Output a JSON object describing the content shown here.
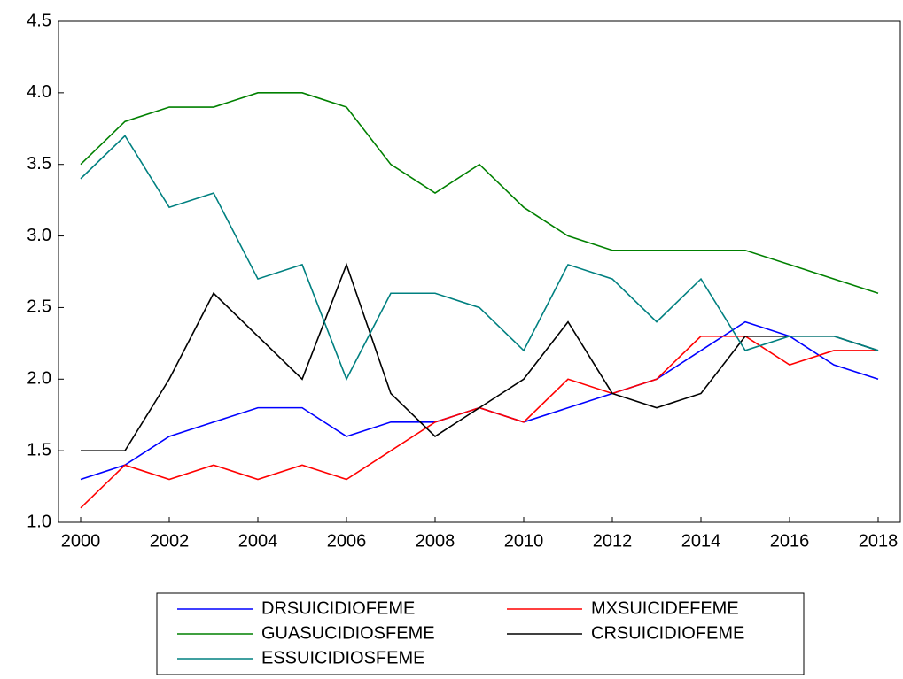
{
  "chart_data": {
    "type": "line",
    "x": [
      2000,
      2001,
      2002,
      2003,
      2004,
      2005,
      2006,
      2007,
      2008,
      2009,
      2010,
      2011,
      2012,
      2013,
      2014,
      2015,
      2016,
      2017,
      2018
    ],
    "series": [
      {
        "name": "DRSUICIDIOFEME",
        "color": "#0000ff",
        "values": [
          1.3,
          1.4,
          1.6,
          1.7,
          1.8,
          1.8,
          1.6,
          1.7,
          1.7,
          1.8,
          1.7,
          1.8,
          1.9,
          2.0,
          2.2,
          2.4,
          2.3,
          2.1,
          2.0
        ]
      },
      {
        "name": "MXSUICIDEFEME",
        "color": "#ff0000",
        "values": [
          1.1,
          1.4,
          1.3,
          1.4,
          1.3,
          1.4,
          1.3,
          1.5,
          1.7,
          1.8,
          1.7,
          2.0,
          1.9,
          2.0,
          2.3,
          2.3,
          2.1,
          2.2,
          2.2
        ]
      },
      {
        "name": "GUASUCIDIOSFEME",
        "color": "#008000",
        "values": [
          3.5,
          3.8,
          3.9,
          3.9,
          4.0,
          4.0,
          3.9,
          3.5,
          3.3,
          3.5,
          3.2,
          3.0,
          2.9,
          2.9,
          2.9,
          2.9,
          2.8,
          2.7,
          2.6
        ]
      },
      {
        "name": "CRSUICIDIOFEME",
        "color": "#000000",
        "values": [
          1.5,
          1.5,
          2.0,
          2.6,
          2.3,
          2.0,
          2.8,
          1.9,
          1.6,
          1.8,
          2.0,
          2.4,
          1.9,
          1.8,
          1.9,
          2.3,
          2.3,
          2.3,
          2.2
        ]
      },
      {
        "name": "ESSUICIDIOSFEME",
        "color": "#008080",
        "values": [
          3.4,
          3.7,
          3.2,
          3.3,
          2.7,
          2.8,
          2.0,
          2.6,
          2.6,
          2.5,
          2.2,
          2.8,
          2.7,
          2.4,
          2.7,
          2.2,
          2.3,
          2.3,
          2.2
        ]
      }
    ],
    "xlim": [
      1999.5,
      2018.5
    ],
    "xticks": [
      2000,
      2002,
      2004,
      2006,
      2008,
      2010,
      2012,
      2014,
      2016,
      2018
    ],
    "ylim": [
      1,
      4.5
    ],
    "yticks": [
      {
        "value": 1,
        "label": "1.0"
      },
      1.5,
      {
        "value": 2,
        "label": "2.0"
      },
      2.5,
      {
        "value": 3,
        "label": "3.0"
      },
      3.5,
      {
        "value": 4,
        "label": "4.0"
      },
      4.5
    ],
    "grid": false,
    "legend": "bottom"
  }
}
